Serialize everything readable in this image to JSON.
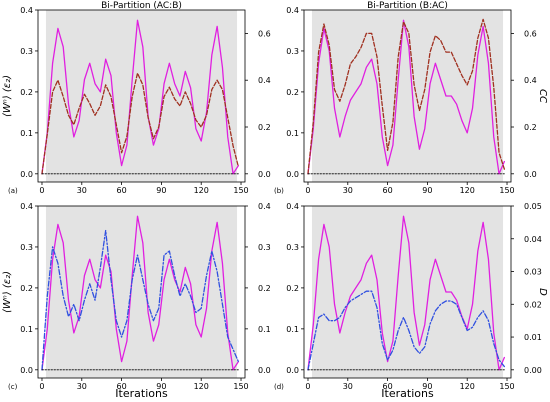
{
  "figure": {
    "xlabel": "Iterations"
  },
  "chart_data": [
    {
      "id": "a",
      "panel_label": "(a)",
      "type": "line",
      "title": "Bi-Partition (AC:B)",
      "left_ylabel": "⟨Wⁿ⟩ (ε₂)",
      "right_ylabel": "",
      "xlim": [
        -3,
        153
      ],
      "ylim_left": [
        -0.02,
        0.4
      ],
      "ylim_right": [
        -0.035,
        0.7
      ],
      "xticks": [
        0,
        30,
        60,
        90,
        120,
        150
      ],
      "yticks_left": [
        0.0,
        0.1,
        0.2,
        0.3,
        0.4
      ],
      "ytick_labels_left": [
        "0.0",
        "0.1",
        "0.2",
        "0.3",
        "0.4"
      ],
      "yticks_right": [
        0.0,
        0.2,
        0.4,
        0.6
      ],
      "ytick_labels_right": [
        "0.0",
        "0.2",
        "0.4",
        "0.6"
      ],
      "shaded_region_x": [
        3,
        147
      ],
      "series": [
        {
          "axis": "left",
          "style": "solid",
          "color": "#e020e0",
          "x": [
            0,
            4,
            8,
            12,
            16,
            20,
            24,
            28,
            32,
            36,
            40,
            44,
            48,
            52,
            56,
            60,
            64,
            68,
            72,
            76,
            80,
            84,
            88,
            92,
            96,
            100,
            104,
            108,
            112,
            116,
            120,
            124,
            128,
            132,
            136,
            140,
            144,
            148
          ],
          "y": [
            0.0,
            0.1,
            0.27,
            0.355,
            0.31,
            0.17,
            0.09,
            0.13,
            0.23,
            0.27,
            0.22,
            0.2,
            0.28,
            0.24,
            0.1,
            0.02,
            0.07,
            0.23,
            0.375,
            0.31,
            0.14,
            0.07,
            0.11,
            0.22,
            0.27,
            0.22,
            0.19,
            0.25,
            0.21,
            0.11,
            0.08,
            0.15,
            0.29,
            0.36,
            0.26,
            0.09,
            0.0,
            0.02
          ]
        },
        {
          "axis": "right",
          "style": "dashed",
          "color": "#a03020",
          "x": [
            0,
            4,
            8,
            12,
            16,
            20,
            24,
            28,
            32,
            36,
            40,
            44,
            48,
            52,
            56,
            60,
            64,
            68,
            72,
            76,
            80,
            84,
            88,
            92,
            96,
            100,
            104,
            108,
            112,
            116,
            120,
            124,
            128,
            132,
            136,
            140,
            144,
            148
          ],
          "y": [
            0.0,
            0.17,
            0.35,
            0.4,
            0.33,
            0.25,
            0.21,
            0.28,
            0.34,
            0.3,
            0.25,
            0.29,
            0.38,
            0.33,
            0.21,
            0.09,
            0.16,
            0.33,
            0.43,
            0.38,
            0.24,
            0.15,
            0.2,
            0.33,
            0.37,
            0.32,
            0.29,
            0.35,
            0.3,
            0.23,
            0.2,
            0.25,
            0.36,
            0.4,
            0.36,
            0.24,
            0.12,
            0.03
          ]
        },
        {
          "axis": "left",
          "style": "dotted",
          "color": "#000000",
          "x": [
            0,
            148
          ],
          "y": [
            0.0,
            0.0
          ]
        }
      ]
    },
    {
      "id": "b",
      "panel_label": "(b)",
      "type": "line",
      "title": "Bi-Partition (B:AC)",
      "left_ylabel": "",
      "right_ylabel": "CC",
      "xlim": [
        -3,
        153
      ],
      "ylim_left": [
        -0.02,
        0.4
      ],
      "ylim_right": [
        -0.035,
        0.7
      ],
      "xticks": [
        0,
        30,
        60,
        90,
        120,
        150
      ],
      "yticks_left": [
        0.0,
        0.1,
        0.2,
        0.3,
        0.4
      ],
      "ytick_labels_left": [
        "0.0",
        "0.1",
        "0.2",
        "0.3",
        "0.4"
      ],
      "yticks_right": [
        0.0,
        0.2,
        0.4,
        0.6
      ],
      "ytick_labels_right": [
        "0.0",
        "0.2",
        "0.4",
        "0.6"
      ],
      "shaded_region_x": [
        3,
        147
      ],
      "series": [
        {
          "axis": "left",
          "style": "solid",
          "color": "#e020e0",
          "x": [
            0,
            4,
            8,
            12,
            16,
            20,
            24,
            28,
            32,
            36,
            40,
            44,
            48,
            52,
            56,
            60,
            64,
            68,
            72,
            76,
            80,
            84,
            88,
            92,
            96,
            100,
            104,
            108,
            112,
            116,
            120,
            124,
            128,
            132,
            136,
            140,
            144,
            148
          ],
          "y": [
            0.0,
            0.11,
            0.27,
            0.355,
            0.3,
            0.16,
            0.09,
            0.14,
            0.18,
            0.2,
            0.22,
            0.26,
            0.28,
            0.22,
            0.09,
            0.02,
            0.07,
            0.23,
            0.375,
            0.31,
            0.14,
            0.06,
            0.11,
            0.22,
            0.27,
            0.23,
            0.19,
            0.19,
            0.17,
            0.13,
            0.1,
            0.16,
            0.29,
            0.36,
            0.27,
            0.09,
            0.0,
            0.03
          ]
        },
        {
          "axis": "right",
          "style": "dashed",
          "color": "#a03020",
          "x": [
            0,
            4,
            8,
            12,
            16,
            20,
            24,
            28,
            32,
            36,
            40,
            44,
            48,
            52,
            56,
            60,
            64,
            68,
            72,
            76,
            80,
            84,
            88,
            92,
            96,
            100,
            104,
            108,
            112,
            116,
            120,
            124,
            128,
            132,
            136,
            140,
            144,
            148
          ],
          "y": [
            0.0,
            0.22,
            0.52,
            0.64,
            0.55,
            0.36,
            0.31,
            0.38,
            0.47,
            0.5,
            0.54,
            0.6,
            0.6,
            0.5,
            0.29,
            0.1,
            0.22,
            0.5,
            0.65,
            0.6,
            0.38,
            0.27,
            0.36,
            0.52,
            0.59,
            0.57,
            0.52,
            0.52,
            0.47,
            0.42,
            0.38,
            0.44,
            0.58,
            0.66,
            0.58,
            0.37,
            0.09,
            0.02
          ]
        },
        {
          "axis": "left",
          "style": "dotted",
          "color": "#000000",
          "x": [
            0,
            148
          ],
          "y": [
            0.0,
            0.0
          ]
        }
      ]
    },
    {
      "id": "c",
      "panel_label": "(c)",
      "type": "line",
      "title": "",
      "left_ylabel": "⟨Wⁿ⟩ (ε₂)",
      "right_ylabel": "",
      "xlim": [
        -3,
        153
      ],
      "ylim_left": [
        -0.02,
        0.4
      ],
      "ylim_right": [
        -0.02,
        0.4
      ],
      "xticks": [
        0,
        30,
        60,
        90,
        120,
        150
      ],
      "yticks_left": [
        0.0,
        0.1,
        0.2,
        0.3,
        0.4
      ],
      "ytick_labels_left": [
        "0.0",
        "0.1",
        "0.2",
        "0.3",
        "0.4"
      ],
      "yticks_right": [
        0.0,
        0.1,
        0.2,
        0.3,
        0.4
      ],
      "ytick_labels_right": [
        "0.0",
        "0.1",
        "0.2",
        "0.3",
        "0.4"
      ],
      "shaded_region_x": [
        3,
        147
      ],
      "series": [
        {
          "axis": "left",
          "style": "solid",
          "color": "#e020e0",
          "x": [
            0,
            4,
            8,
            12,
            16,
            20,
            24,
            28,
            32,
            36,
            40,
            44,
            48,
            52,
            56,
            60,
            64,
            68,
            72,
            76,
            80,
            84,
            88,
            92,
            96,
            100,
            104,
            108,
            112,
            116,
            120,
            124,
            128,
            132,
            136,
            140,
            144,
            148
          ],
          "y": [
            0.0,
            0.1,
            0.27,
            0.355,
            0.31,
            0.17,
            0.09,
            0.13,
            0.23,
            0.27,
            0.22,
            0.2,
            0.28,
            0.24,
            0.1,
            0.02,
            0.07,
            0.23,
            0.375,
            0.31,
            0.14,
            0.07,
            0.11,
            0.22,
            0.27,
            0.22,
            0.19,
            0.25,
            0.21,
            0.11,
            0.08,
            0.15,
            0.29,
            0.36,
            0.26,
            0.09,
            0.0,
            0.02
          ]
        },
        {
          "axis": "right",
          "style": "dashdot",
          "color": "#3050e0",
          "x": [
            0,
            4,
            8,
            12,
            16,
            20,
            24,
            28,
            32,
            36,
            40,
            44,
            48,
            52,
            56,
            60,
            64,
            68,
            72,
            76,
            80,
            84,
            88,
            92,
            96,
            100,
            104,
            108,
            112,
            116,
            120,
            124,
            128,
            132,
            136,
            140,
            144,
            148
          ],
          "y": [
            0.0,
            0.18,
            0.3,
            0.26,
            0.18,
            0.13,
            0.16,
            0.12,
            0.17,
            0.21,
            0.17,
            0.25,
            0.34,
            0.22,
            0.12,
            0.08,
            0.12,
            0.22,
            0.28,
            0.22,
            0.16,
            0.12,
            0.15,
            0.28,
            0.29,
            0.23,
            0.18,
            0.21,
            0.18,
            0.14,
            0.15,
            0.23,
            0.29,
            0.24,
            0.16,
            0.08,
            0.05,
            0.02
          ]
        },
        {
          "axis": "left",
          "style": "dotted",
          "color": "#000000",
          "x": [
            0,
            148
          ],
          "y": [
            0.0,
            0.0
          ]
        }
      ]
    },
    {
      "id": "d",
      "panel_label": "(d)",
      "type": "line",
      "title": "",
      "left_ylabel": "",
      "right_ylabel": "D",
      "xlim": [
        -3,
        153
      ],
      "ylim_left": [
        -0.02,
        0.4
      ],
      "ylim_right": [
        -0.0025,
        0.05
      ],
      "xticks": [
        0,
        30,
        60,
        90,
        120,
        150
      ],
      "yticks_left": [
        0.0,
        0.1,
        0.2,
        0.3,
        0.4
      ],
      "ytick_labels_left": [
        "0.0",
        "0.1",
        "0.2",
        "0.3",
        "0.4"
      ],
      "yticks_right": [
        0.0,
        0.01,
        0.02,
        0.03,
        0.04,
        0.05
      ],
      "ytick_labels_right": [
        "0.00",
        "0.01",
        "0.02",
        "0.03",
        "0.04",
        "0.05"
      ],
      "shaded_region_x": [
        3,
        147
      ],
      "series": [
        {
          "axis": "left",
          "style": "solid",
          "color": "#e020e0",
          "x": [
            0,
            4,
            8,
            12,
            16,
            20,
            24,
            28,
            32,
            36,
            40,
            44,
            48,
            52,
            56,
            60,
            64,
            68,
            72,
            76,
            80,
            84,
            88,
            92,
            96,
            100,
            104,
            108,
            112,
            116,
            120,
            124,
            128,
            132,
            136,
            140,
            144,
            148
          ],
          "y": [
            0.0,
            0.11,
            0.27,
            0.355,
            0.3,
            0.16,
            0.09,
            0.14,
            0.18,
            0.2,
            0.22,
            0.26,
            0.28,
            0.22,
            0.09,
            0.02,
            0.07,
            0.23,
            0.375,
            0.31,
            0.14,
            0.06,
            0.11,
            0.22,
            0.27,
            0.23,
            0.19,
            0.19,
            0.17,
            0.13,
            0.1,
            0.16,
            0.29,
            0.36,
            0.27,
            0.09,
            0.0,
            0.03
          ]
        },
        {
          "axis": "right",
          "style": "dashdot",
          "color": "#3050e0",
          "x": [
            0,
            4,
            8,
            12,
            16,
            20,
            24,
            28,
            32,
            36,
            40,
            44,
            48,
            52,
            56,
            60,
            64,
            68,
            72,
            76,
            80,
            84,
            88,
            92,
            96,
            100,
            104,
            108,
            112,
            116,
            120,
            124,
            128,
            132,
            136,
            140,
            144,
            148
          ],
          "y": [
            0.0,
            0.008,
            0.016,
            0.017,
            0.015,
            0.015,
            0.016,
            0.019,
            0.021,
            0.022,
            0.023,
            0.024,
            0.024,
            0.019,
            0.008,
            0.003,
            0.006,
            0.012,
            0.016,
            0.012,
            0.007,
            0.005,
            0.007,
            0.014,
            0.018,
            0.02,
            0.021,
            0.021,
            0.02,
            0.016,
            0.012,
            0.013,
            0.016,
            0.018,
            0.015,
            0.008,
            0.003,
            0.001
          ]
        },
        {
          "axis": "left",
          "style": "dotted",
          "color": "#000000",
          "x": [
            0,
            148
          ],
          "y": [
            0.0,
            0.0
          ]
        }
      ]
    }
  ]
}
